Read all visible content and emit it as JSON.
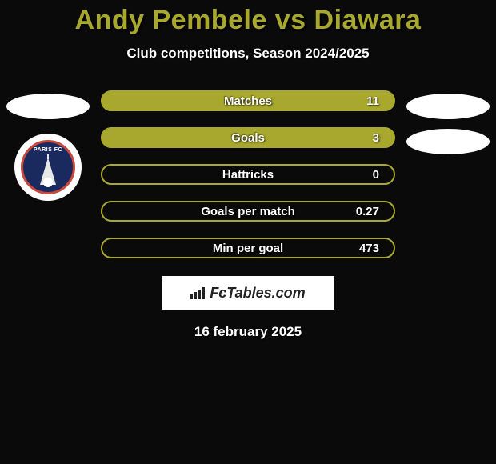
{
  "title": "Andy Pembele vs Diawara",
  "subtitle": "Club competitions, Season 2024/2025",
  "date": "16 february 2025",
  "logo_text": "FcTables.com",
  "player_left": {
    "club_name": "PARIS FC"
  },
  "colors": {
    "accent": "#a8a82e",
    "title": "#a8a82e",
    "background": "#0a0a0a",
    "text": "#ffffff"
  },
  "stats": [
    {
      "label": "Matches",
      "value": "11",
      "filled": true
    },
    {
      "label": "Goals",
      "value": "3",
      "filled": true
    },
    {
      "label": "Hattricks",
      "value": "0",
      "filled": false
    },
    {
      "label": "Goals per match",
      "value": "0.27",
      "filled": false
    },
    {
      "label": "Min per goal",
      "value": "473",
      "filled": false
    }
  ],
  "typography": {
    "title_fontsize": 34,
    "subtitle_fontsize": 17,
    "stat_fontsize": 15
  }
}
